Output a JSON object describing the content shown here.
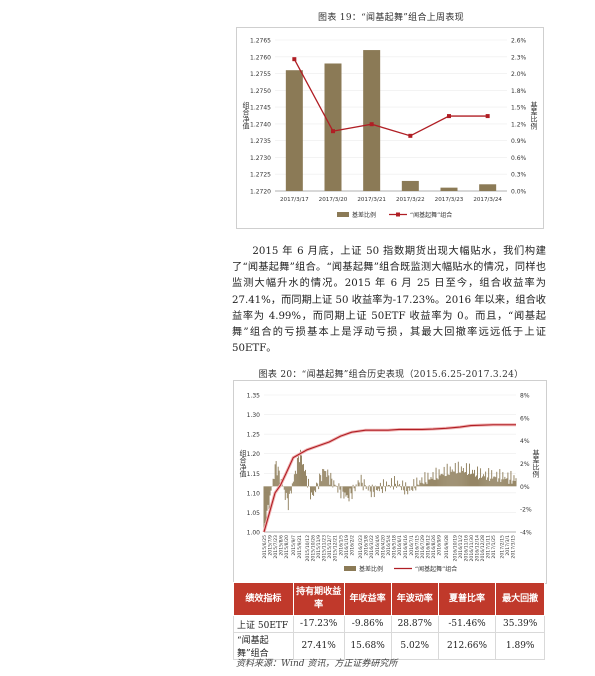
{
  "figure1": {
    "title": "图表 19：“闻基起舞”组合上周表现",
    "left_label": "组合净值",
    "right_label": "基差比例",
    "legend": [
      "基差比例",
      "“闻基起舞”组合"
    ],
    "colors": {
      "bar": "#8b7a56",
      "line": "#b01e24"
    }
  },
  "paragraph": "2015 年 6 月底，上证 50 指数期货出现大幅贴水，我们构建了“闻基起舞”组合。“闻基起舞”组合既监测大幅贴水的情况，同样也监测大幅升水的情况。2015 年 6 月 25 日至今，组合收益率为 27.41%，而同期上证 50 收益率为-17.23%。2016 年以来，组合收益率为 4.99%，而同期上证 50ETF 收益率为 0。而且，“闻基起舞”组合的亏损基本上是浮动亏损，其最大回撤率远远低于上证 50ETF。",
  "figure2": {
    "title": "图表 20：“闻基起舞”组合历史表现（2015.6.25-2017.3.24）",
    "left_label": "组合净值",
    "right_label": "基差比例",
    "legend": [
      "基差比例",
      "“闻基起舞”组合"
    ],
    "colors": {
      "bar": "#8b7a56",
      "line": "#b01e24"
    }
  },
  "table": {
    "headers": [
      "绩效指标",
      "持有期收益率",
      "年收益率",
      "年波动率",
      "夏普比率",
      "最大回撤"
    ],
    "rows": [
      [
        "上证 50ETF",
        "-17.23%",
        "-9.86%",
        "28.87%",
        "-51.46%",
        "35.39%"
      ],
      [
        "“闻基起舞”组合",
        "27.41%",
        "15.68%",
        "5.02%",
        "212.66%",
        "1.89%"
      ]
    ]
  },
  "source": "资料来源：Wind 资讯，方正证券研究所",
  "chart_data": [
    {
      "type": "bar",
      "title": "",
      "categories": [
        "2017/3/17",
        "2017/3/20",
        "2017/3/21",
        "2017/3/22",
        "2017/3/23",
        "2017/3/24"
      ],
      "series": [
        {
          "name": "基差比例",
          "type": "bar",
          "axis": "left",
          "values": [
            1.2756,
            1.2758,
            1.2762,
            1.2723,
            1.2721,
            1.2722
          ]
        },
        {
          "name": "“闻基起舞”组合",
          "type": "line",
          "axis": "right",
          "values": [
            0.0227,
            0.0103,
            0.0115,
            0.0095,
            0.0129,
            0.0129
          ]
        }
      ],
      "ylim": [
        1.272,
        1.2765
      ],
      "yticks": [
        "1.2720",
        "1.2725",
        "1.2730",
        "1.2735",
        "1.2740",
        "1.2745",
        "1.2750",
        "1.2755",
        "1.2760",
        "1.2765"
      ],
      "ylim_right": [
        0,
        0.026
      ],
      "yticks_right": [
        "0.0%",
        "0.3%",
        "0.6%",
        "0.9%",
        "1.2%",
        "1.5%",
        "1.8%",
        "2.0%",
        "2.3%",
        "2.6%"
      ],
      "ylabel": "组合净值",
      "ylabel_right": "基差比例",
      "legend_position": "bottom"
    },
    {
      "type": "line",
      "title": "",
      "x_ticks": [
        "2015/6/25",
        "2015/7/9",
        "2015/7/23",
        "2015/8/6",
        "2015/8/20",
        "2015/9/7",
        "2015/9/21",
        "2015/10/12",
        "2015/10/26",
        "2015/11/9",
        "2015/11/23",
        "2015/12/7",
        "2015/12/21",
        "2016/1/5",
        "2016/1/19",
        "2016/2/2",
        "2016/2/23",
        "2016/3/8",
        "2016/3/22",
        "2016/4/6",
        "2016/4/20",
        "2016/5/4",
        "2016/5/18",
        "2016/6/1",
        "2016/6/16",
        "2016/7/1",
        "2016/7/15",
        "2016/7/29",
        "2016/8/12",
        "2016/8/26",
        "2016/9/9",
        "2016/9/28",
        "2016/10/19",
        "2016/11/2",
        "2016/11/16",
        "2016/11/30",
        "2016/12/14",
        "2016/12/28",
        "2017/1/11",
        "2017/1/25",
        "2017/2/15",
        "2017/3/1",
        "2017/3/15"
      ],
      "series": [
        {
          "name": "“闻基起舞”组合",
          "axis": "left",
          "x": [
            "2015/6/25",
            "2015/7/9",
            "2015/7/23",
            "2015/8/6",
            "2015/8/20",
            "2015/9/7",
            "2015/10/12",
            "2015/11/9",
            "2015/12/7",
            "2016/1/5",
            "2016/2/2",
            "2016/3/8",
            "2016/4/6",
            "2016/5/4",
            "2016/6/1",
            "2016/7/1",
            "2016/7/29",
            "2016/8/26",
            "2016/9/28",
            "2016/11/2",
            "2016/11/30",
            "2016/12/28",
            "2017/1/25",
            "2017/3/1",
            "2017/3/24"
          ],
          "values": [
            1.0,
            1.05,
            1.1,
            1.12,
            1.15,
            1.19,
            1.21,
            1.22,
            1.23,
            1.245,
            1.255,
            1.26,
            1.26,
            1.26,
            1.262,
            1.262,
            1.262,
            1.263,
            1.265,
            1.268,
            1.272,
            1.273,
            1.274,
            1.274,
            1.274
          ]
        },
        {
          "name": "基差比例",
          "axis": "right",
          "type": "bar",
          "values": [
            -0.04,
            0.02,
            -0.015,
            0.03,
            -0.01,
            0.015,
            0.0,
            -0.01,
            0.005,
            -0.005,
            0.0,
            0.003,
            -0.004,
            0.004,
            0.008,
            0.012,
            0.015,
            0.014,
            0.01,
            0.009,
            0.008,
            0.006
          ]
        }
      ],
      "ylim": [
        1.0,
        1.35
      ],
      "yticks": [
        "1.00",
        "1.05",
        "1.10",
        "1.15",
        "1.20",
        "1.25",
        "1.30",
        "1.35"
      ],
      "ylim_right": [
        -0.04,
        0.08
      ],
      "yticks_right": [
        "-4%",
        "-2%",
        "0%",
        "2%",
        "4%",
        "6%",
        "8%"
      ],
      "ylabel": "组合净值",
      "ylabel_right": "基差比例",
      "legend_position": "bottom"
    }
  ]
}
